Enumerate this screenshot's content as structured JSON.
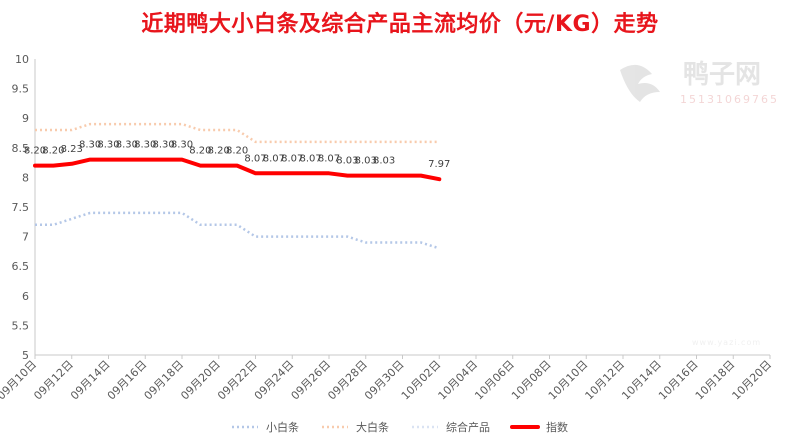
{
  "chart_data": {
    "type": "line",
    "title": "近期鸭大小白条及综合产品主流均价（元/KG）走势",
    "watermark": {
      "name": "鸭子网",
      "phone": "15131069765",
      "url": "www.yazi.com"
    },
    "x_tick_labels": [
      "09月10日",
      "09月12日",
      "09月14日",
      "09月16日",
      "09月18日",
      "09月20日",
      "09月22日",
      "09月24日",
      "09月26日",
      "09月28日",
      "09月30日",
      "10月02日",
      "10月04日",
      "10月06日",
      "10月08日",
      "10月10日",
      "10月12日",
      "10月14日",
      "10月16日",
      "10月18日",
      "10月20日"
    ],
    "x_range_days": [
      0,
      40
    ],
    "ylim": [
      5,
      10
    ],
    "yticks": [
      "5",
      "5.5",
      "6",
      "6.5",
      "7",
      "7.5",
      "8",
      "8.5",
      "9",
      "9.5",
      "10"
    ],
    "grid": false,
    "legend_position": "bottom",
    "series": [
      {
        "name": "小白条",
        "color": "#b4c7e7",
        "style": "dotted",
        "x": [
          0,
          1,
          2,
          3,
          4,
          5,
          6,
          7,
          8,
          9,
          10,
          11,
          12,
          13,
          14,
          15,
          16,
          17,
          18,
          19,
          20,
          21,
          22
        ],
        "values": [
          7.2,
          7.2,
          7.3,
          7.4,
          7.4,
          7.4,
          7.4,
          7.4,
          7.4,
          7.2,
          7.2,
          7.2,
          7.0,
          7.0,
          7.0,
          7.0,
          7.0,
          7.0,
          6.9,
          6.9,
          6.9,
          6.9,
          6.8
        ]
      },
      {
        "name": "大白条",
        "color": "#f8cbad",
        "style": "dotted",
        "x": [
          0,
          1,
          2,
          3,
          4,
          5,
          6,
          7,
          8,
          9,
          10,
          11,
          12,
          13,
          14,
          15,
          16,
          17,
          18,
          19,
          20,
          21,
          22
        ],
        "values": [
          8.8,
          8.8,
          8.8,
          8.9,
          8.9,
          8.9,
          8.9,
          8.9,
          8.9,
          8.8,
          8.8,
          8.8,
          8.6,
          8.6,
          8.6,
          8.6,
          8.6,
          8.6,
          8.6,
          8.6,
          8.6,
          8.6,
          8.6
        ]
      },
      {
        "name": "综合产品",
        "color": "#dae3f3",
        "style": "dotted",
        "x": [
          0,
          1,
          2,
          3,
          4,
          5,
          6,
          7,
          8,
          9,
          10,
          11,
          12,
          13,
          14,
          15,
          16,
          17,
          18,
          19,
          20,
          21,
          22
        ],
        "values": [
          8.2,
          8.2,
          8.23,
          8.3,
          8.3,
          8.3,
          8.3,
          8.3,
          8.3,
          8.2,
          8.2,
          8.2,
          8.07,
          8.07,
          8.07,
          8.07,
          8.07,
          8.03,
          8.03,
          8.03,
          8.03,
          8.03,
          7.97
        ]
      },
      {
        "name": "指数",
        "color": "#ff0000",
        "style": "solid",
        "x": [
          0,
          1,
          2,
          3,
          4,
          5,
          6,
          7,
          8,
          9,
          10,
          11,
          12,
          13,
          14,
          15,
          16,
          17,
          18,
          19,
          20,
          21,
          22
        ],
        "values": [
          8.2,
          8.2,
          8.23,
          8.3,
          8.3,
          8.3,
          8.3,
          8.3,
          8.3,
          8.2,
          8.2,
          8.2,
          8.07,
          8.07,
          8.07,
          8.07,
          8.07,
          8.03,
          8.03,
          8.03,
          8.03,
          8.03,
          7.97
        ]
      }
    ],
    "data_labels": [
      {
        "x": 0,
        "value": 8.2,
        "text": "8.20"
      },
      {
        "x": 1,
        "value": 8.2,
        "text": "8.20"
      },
      {
        "x": 2,
        "value": 8.23,
        "text": "8.23"
      },
      {
        "x": 3,
        "value": 8.3,
        "text": "8.30"
      },
      {
        "x": 4,
        "value": 8.3,
        "text": "8.30"
      },
      {
        "x": 5,
        "value": 8.3,
        "text": "8.30"
      },
      {
        "x": 6,
        "value": 8.3,
        "text": "8.30"
      },
      {
        "x": 7,
        "value": 8.3,
        "text": "8.30"
      },
      {
        "x": 8,
        "value": 8.3,
        "text": "8.30"
      },
      {
        "x": 9,
        "value": 8.2,
        "text": "8.20"
      },
      {
        "x": 10,
        "value": 8.2,
        "text": "8.20"
      },
      {
        "x": 11,
        "value": 8.2,
        "text": "8.20"
      },
      {
        "x": 12,
        "value": 8.07,
        "text": "8.07"
      },
      {
        "x": 13,
        "value": 8.07,
        "text": "8.07"
      },
      {
        "x": 14,
        "value": 8.07,
        "text": "8.07"
      },
      {
        "x": 15,
        "value": 8.07,
        "text": "8.07"
      },
      {
        "x": 16,
        "value": 8.07,
        "text": "8.07"
      },
      {
        "x": 17,
        "value": 8.03,
        "text": "8.03"
      },
      {
        "x": 18,
        "value": 8.03,
        "text": "8.03"
      },
      {
        "x": 19,
        "value": 8.03,
        "text": "8.03"
      },
      {
        "x": 22,
        "value": 7.97,
        "text": "7.97"
      }
    ]
  }
}
